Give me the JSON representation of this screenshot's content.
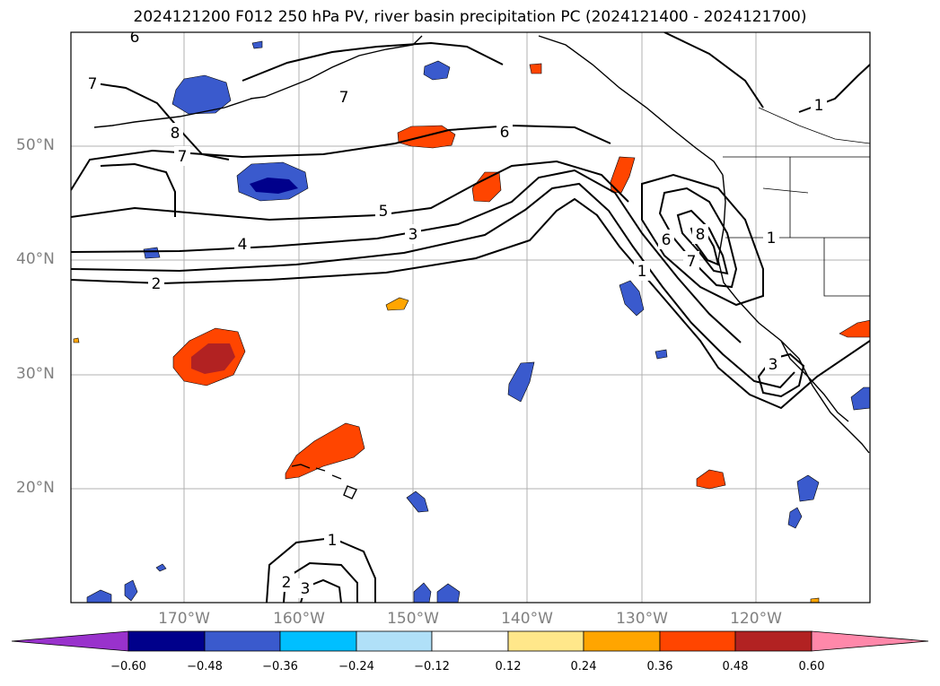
{
  "title": "2024121200 F012 250 hPa PV, river basin precipitation PC (2024121400 - 2024121700)",
  "lat_labels": [
    "50°N",
    "40°N",
    "30°N",
    "20°N"
  ],
  "lon_labels": [
    "170°W",
    "160°W",
    "150°W",
    "140°W",
    "130°W",
    "120°W"
  ],
  "contour_labels": [
    "6",
    "7",
    "7",
    "8",
    "7",
    "6",
    "5",
    "4",
    "3",
    "2",
    "1",
    "6",
    "7",
    "8",
    "1",
    "1",
    "3",
    "1",
    "2",
    "3"
  ],
  "colorbar": {
    "ticks": [
      "−0.60",
      "−0.48",
      "−0.36",
      "−0.24",
      "−0.12",
      "0.12",
      "0.24",
      "0.36",
      "0.48",
      "0.60"
    ],
    "colors": [
      "#9932cc",
      "#00008b",
      "#3a5acd",
      "#00bfff",
      "#b0e0f8",
      "#ffffff",
      "#ffe78a",
      "#ffa500",
      "#ff4500",
      "#b22222",
      "#ff88aa"
    ]
  },
  "colors": {
    "frame": "#000000",
    "grid": "#b0b0b0",
    "contour": "#000000",
    "coast": "#000000"
  }
}
